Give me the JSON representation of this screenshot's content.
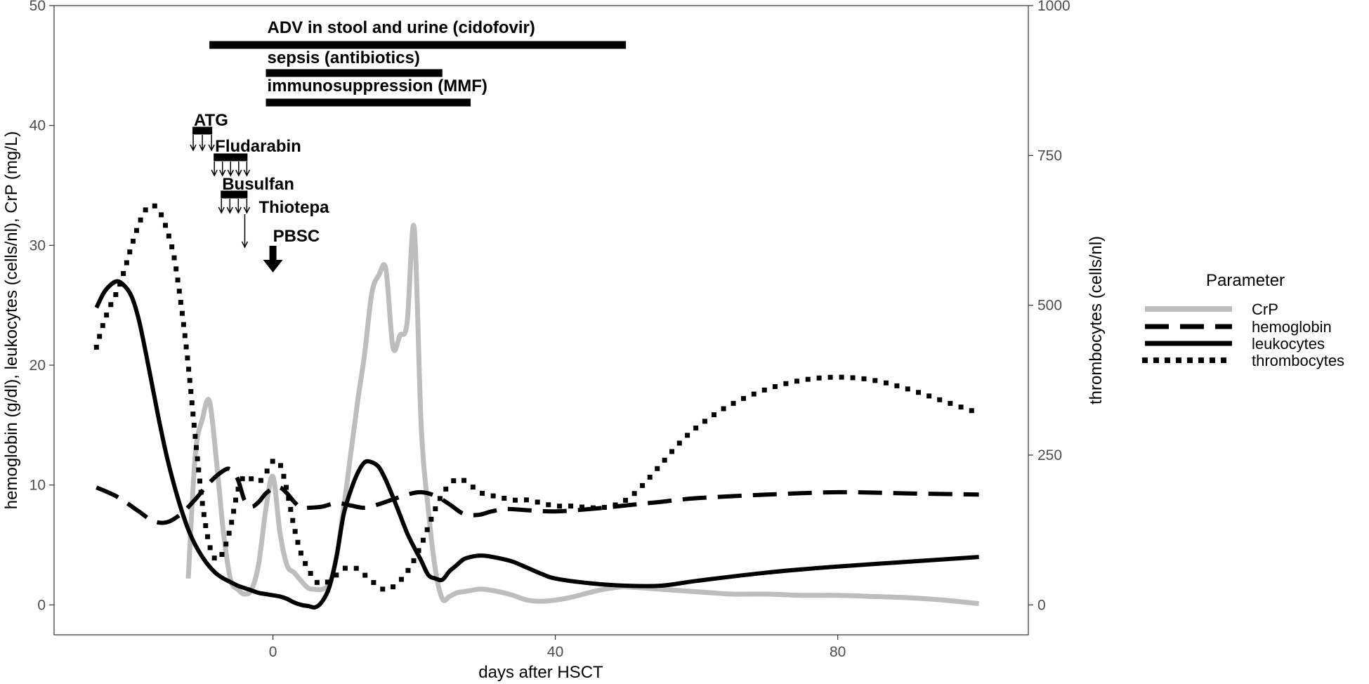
{
  "chart_data": {
    "type": "line",
    "xlabel": "days after HSCT",
    "ylabel_left": "hemoglobin (g/dl), leukocytes (cells/nl), CrP (mg/L)",
    "ylabel_right": "thrombocytes (cells/nl)",
    "xlim": [
      -31,
      107
    ],
    "ylim_left": [
      -2.5,
      50
    ],
    "ylim_right": [
      -50,
      1000
    ],
    "x_ticks": [
      0,
      40,
      80
    ],
    "x_tick_labels": [
      "0",
      "40",
      "80"
    ],
    "y_left_ticks": [
      0,
      10,
      20,
      30,
      40,
      50
    ],
    "y_left_tick_labels": [
      "0",
      "10",
      "20",
      "30",
      "40",
      "50"
    ],
    "y_right_ticks": [
      0,
      250,
      500,
      750,
      1000
    ],
    "y_right_tick_labels": [
      "0",
      "250",
      "500",
      "750",
      "1000"
    ],
    "grid": false,
    "legend": {
      "title": "Parameter",
      "placement": "right",
      "entries": [
        "CrP",
        "hemoglobin",
        "leukocytes",
        "thrombocytes"
      ]
    },
    "series": [
      {
        "name": "CrP",
        "axis": "left",
        "color": "#bdbdbd",
        "style": "solid",
        "x": [
          -12,
          -11,
          -10,
          -9,
          -8,
          -7,
          -6,
          -5,
          -4,
          -3,
          -2,
          -1,
          0,
          1,
          2,
          3,
          4,
          5,
          6,
          7,
          8,
          9,
          10,
          11,
          12,
          13,
          14,
          15,
          16,
          17,
          18,
          19,
          20,
          21,
          22,
          23,
          24,
          25,
          26,
          27,
          28,
          29,
          30,
          32,
          34,
          36,
          38,
          40,
          42,
          44,
          46,
          48,
          50,
          55,
          60,
          65,
          70,
          75,
          80,
          85,
          90,
          95,
          100
        ],
        "y": [
          2.2,
          12.5,
          15.5,
          17,
          12,
          6,
          2.1,
          1.3,
          0.9,
          1.3,
          3.5,
          8,
          10.7,
          6,
          3.3,
          2.7,
          2,
          1.4,
          1.3,
          1.3,
          1.8,
          4,
          8,
          12.5,
          17,
          21,
          26,
          27.5,
          28,
          21.5,
          22.5,
          23.5,
          31.5,
          15,
          8,
          3,
          0.5,
          0.7,
          1,
          1.1,
          1.2,
          1.3,
          1.3,
          1.1,
          0.8,
          0.4,
          0.3,
          0.4,
          0.6,
          0.9,
          1.2,
          1.4,
          1.5,
          1.3,
          1.1,
          0.9,
          0.9,
          0.8,
          0.8,
          0.7,
          0.6,
          0.4,
          0.1
        ]
      },
      {
        "name": "hemoglobin",
        "axis": "left",
        "color": "#000000",
        "style": "longdash",
        "x": [
          -25,
          -22,
          -19,
          -17,
          -15,
          -13,
          -11,
          -9,
          -7,
          -6,
          -5,
          -4,
          -3,
          -2,
          -1,
          0,
          1,
          2,
          3,
          4,
          5,
          7,
          9,
          11,
          13,
          15,
          17,
          19,
          21,
          23,
          25,
          27,
          29,
          31,
          33,
          36,
          40,
          45,
          50,
          55,
          60,
          70,
          80,
          90,
          100
        ],
        "y": [
          9.8,
          9,
          7.8,
          7,
          6.9,
          7.6,
          8.8,
          10.2,
          11.2,
          11.3,
          10.5,
          8.7,
          8.2,
          8.6,
          9.3,
          9.7,
          9.8,
          9.3,
          8.6,
          8.1,
          8.1,
          8.2,
          8.5,
          8.3,
          8.1,
          8.4,
          8.8,
          9.2,
          9.4,
          9.1,
          8.4,
          7.6,
          7.5,
          7.8,
          8,
          7.9,
          7.8,
          8,
          8.3,
          8.6,
          8.9,
          9.2,
          9.4,
          9.3,
          9.2
        ]
      },
      {
        "name": "leukocytes",
        "axis": "left",
        "color": "#000000",
        "style": "solid",
        "x": [
          -25,
          -24,
          -23,
          -22,
          -21,
          -20,
          -19,
          -18,
          -17,
          -16,
          -15,
          -14,
          -13,
          -12,
          -11,
          -10,
          -9,
          -8,
          -7,
          -6,
          -5,
          -4,
          -3,
          -2,
          -1,
          0,
          1,
          2,
          3,
          4,
          5,
          6,
          7,
          8,
          9,
          10,
          11,
          12,
          13,
          14,
          15,
          16,
          17,
          18,
          19,
          20,
          21,
          22,
          23,
          24,
          25,
          26,
          27,
          28,
          29,
          30,
          32,
          34,
          36,
          38,
          40,
          45,
          50,
          55,
          60,
          70,
          80,
          90,
          100
        ],
        "y": [
          24.8,
          26,
          26.7,
          27,
          26.6,
          25.7,
          23.8,
          21,
          18,
          15,
          12.3,
          10,
          8,
          6.3,
          5,
          4,
          3.2,
          2.6,
          2.2,
          1.9,
          1.6,
          1.4,
          1.2,
          1.0,
          0.9,
          0.8,
          0.7,
          0.5,
          0.2,
          0,
          -0.1,
          -0.2,
          0.3,
          1.5,
          4,
          7.5,
          9.5,
          11,
          11.9,
          11.9,
          11.5,
          10.4,
          9,
          7.5,
          6,
          4.8,
          3.7,
          2.5,
          2.2,
          2.1,
          2.8,
          3.3,
          3.8,
          4,
          4.1,
          4.1,
          3.9,
          3.6,
          3.1,
          2.6,
          2.2,
          1.8,
          1.6,
          1.6,
          2,
          2.7,
          3.2,
          3.6,
          4
        ]
      },
      {
        "name": "thrombocytes",
        "axis": "right",
        "color": "#000000",
        "style": "dotted",
        "x": [
          -25,
          -24,
          -23,
          -22,
          -21,
          -20,
          -19,
          -18,
          -17,
          -16,
          -15,
          -14,
          -13,
          -12,
          -11,
          -10,
          -9,
          -8,
          -7,
          -6,
          -5,
          -4,
          -3,
          -2,
          -1,
          0,
          1,
          2,
          3,
          4,
          5,
          6,
          7,
          8,
          9,
          10,
          11,
          12,
          13,
          14,
          15,
          16,
          17,
          18,
          19,
          20,
          21,
          22,
          23,
          24,
          25,
          26,
          27,
          28,
          29,
          30,
          32,
          34,
          36,
          38,
          40,
          42,
          44,
          46,
          48,
          50,
          52,
          55,
          58,
          61,
          65,
          70,
          75,
          80,
          85,
          90,
          95,
          100
        ],
        "y": [
          430,
          470,
          500,
          525,
          560,
          600,
          635,
          660,
          667,
          655,
          625,
          580,
          500,
          400,
          280,
          170,
          100,
          75,
          90,
          130,
          190,
          215,
          210,
          205,
          220,
          240,
          235,
          190,
          130,
          85,
          60,
          40,
          35,
          40,
          50,
          60,
          62,
          60,
          50,
          40,
          30,
          25,
          30,
          40,
          55,
          75,
          100,
          130,
          160,
          185,
          200,
          210,
          208,
          200,
          190,
          185,
          180,
          175,
          175,
          170,
          165,
          165,
          163,
          162,
          165,
          175,
          195,
          235,
          275,
          305,
          335,
          360,
          375,
          380,
          375,
          360,
          340,
          320
        ]
      }
    ],
    "annotations": {
      "bars": [
        {
          "label": "ADV in stool and urine (cidofovir)",
          "start": -9,
          "end": 50
        },
        {
          "label": "sepsis (antibiotics)",
          "start": -1,
          "end": 24
        },
        {
          "label": "immunosuppression (MMF)",
          "start": -1,
          "end": 28
        }
      ],
      "drugs": [
        {
          "label": "ATG",
          "start": -11,
          "end": -9,
          "arrows": 3
        },
        {
          "label": "Fludarabin",
          "start": -8,
          "end": -4,
          "arrows": 5
        },
        {
          "label": "Busulfan",
          "start": -7,
          "end": -4,
          "arrows": 4
        },
        {
          "label": "Thiotepa",
          "start": -2,
          "end": -2,
          "arrows": 1
        },
        {
          "label": "PBSC",
          "start": 0,
          "end": 0,
          "arrows": 1
        }
      ]
    }
  }
}
